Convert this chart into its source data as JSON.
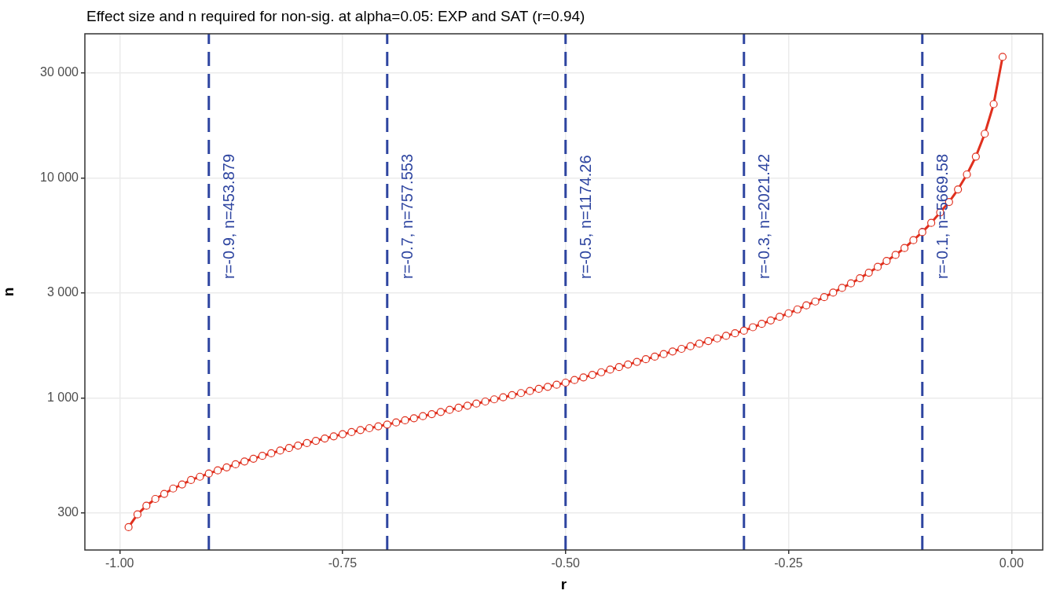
{
  "chart_data": {
    "type": "line",
    "title": "Effect size and n required for non-sig. at alpha=0.05: EXP and SAT (r=0.94)",
    "xlabel": "r",
    "ylabel": "n",
    "x": [
      -0.99,
      -0.98,
      -0.97,
      -0.96,
      -0.95,
      -0.94,
      -0.93,
      -0.92,
      -0.91,
      -0.9,
      -0.89,
      -0.88,
      -0.87,
      -0.86,
      -0.85,
      -0.84,
      -0.83,
      -0.82,
      -0.81,
      -0.8,
      -0.79,
      -0.78,
      -0.77,
      -0.76,
      -0.75,
      -0.74,
      -0.73,
      -0.72,
      -0.71,
      -0.7,
      -0.69,
      -0.68,
      -0.67,
      -0.66,
      -0.65,
      -0.64,
      -0.63,
      -0.62,
      -0.61,
      -0.6,
      -0.59,
      -0.58,
      -0.57,
      -0.56,
      -0.55,
      -0.54,
      -0.53,
      -0.52,
      -0.51,
      -0.5,
      -0.49,
      -0.48,
      -0.47,
      -0.46,
      -0.45,
      -0.44,
      -0.43,
      -0.42,
      -0.41,
      -0.4,
      -0.39,
      -0.38,
      -0.37,
      -0.36,
      -0.35,
      -0.34,
      -0.33,
      -0.32,
      -0.31,
      -0.3,
      -0.29,
      -0.28,
      -0.27,
      -0.26,
      -0.25,
      -0.24,
      -0.23,
      -0.22,
      -0.21,
      -0.2,
      -0.19,
      -0.18,
      -0.17,
      -0.16,
      -0.15,
      -0.14,
      -0.13,
      -0.12,
      -0.11,
      -0.1,
      -0.09,
      -0.08,
      -0.07,
      -0.06,
      -0.05,
      -0.04,
      -0.03,
      -0.02,
      -0.01
    ],
    "series": [
      {
        "color": "#e0301e",
        "values": [
          259,
          296,
          324,
          348,
          367,
          388,
          405,
          424,
          439,
          453.879,
          469,
          484,
          500,
          515,
          530,
          546,
          561,
          577,
          593,
          608,
          624,
          639,
          655,
          670,
          685,
          700,
          715,
          729,
          744,
          757.553,
          774,
          792,
          809,
          827,
          845,
          864,
          883,
          903,
          923,
          943,
          964,
          986,
          1007,
          1030,
          1053,
          1076,
          1100,
          1124,
          1149,
          1174.26,
          1207,
          1240,
          1274,
          1309,
          1345,
          1382,
          1420,
          1459,
          1500,
          1541,
          1583,
          1627,
          1672,
          1718,
          1765,
          1814,
          1864,
          1915,
          1968,
          2021.42,
          2096,
          2172,
          2251,
          2339,
          2425,
          2526,
          2633,
          2743,
          2872,
          3010,
          3162,
          3315,
          3499,
          3707,
          3939,
          4194,
          4467,
          4798,
          5211,
          5669.58,
          6244,
          6966,
          7768,
          8856,
          10360,
          12480,
          15850,
          21620,
          35400
        ]
      }
    ],
    "log": "y",
    "marker": "circle",
    "line_style": "solid",
    "grid": true,
    "legend": false,
    "xlim": [
      -1.039,
      0.035
    ],
    "xticks": [
      {
        "value": -1,
        "label": "-1.00"
      },
      {
        "value": -0.75,
        "label": "-0.75"
      },
      {
        "value": -0.5,
        "label": "-0.50"
      },
      {
        "value": -0.25,
        "label": "-0.25"
      },
      {
        "value": 0,
        "label": "0.00"
      }
    ],
    "ylim": [
      204,
      45100
    ],
    "yticks": [
      300,
      {
        "value": 1000,
        "label": "1 000"
      },
      {
        "value": 3000,
        "label": "3 000"
      },
      {
        "value": 10000,
        "label": "10 000"
      },
      {
        "value": 30000,
        "label": "30 000"
      }
    ],
    "ref_lines": [
      {
        "axis": "x",
        "value": -0.9,
        "label": "r=-0.9, n=453.879",
        "color": "#2e45a0",
        "line_style": "dashed"
      },
      {
        "axis": "x",
        "value": -0.7,
        "label": "r=-0.7, n=757.553",
        "color": "#2e45a0",
        "line_style": "dashed"
      },
      {
        "axis": "x",
        "value": -0.5,
        "label": "r=-0.5, n=1174.26",
        "color": "#2e45a0",
        "line_style": "dashed"
      },
      {
        "axis": "x",
        "value": -0.3,
        "label": "r=-0.3, n=2021.42",
        "color": "#2e45a0",
        "line_style": "dashed"
      },
      {
        "axis": "x",
        "value": -0.1,
        "label": "r=-0.1, n=5669.58",
        "color": "#2e45a0",
        "line_style": "dashed"
      }
    ]
  }
}
